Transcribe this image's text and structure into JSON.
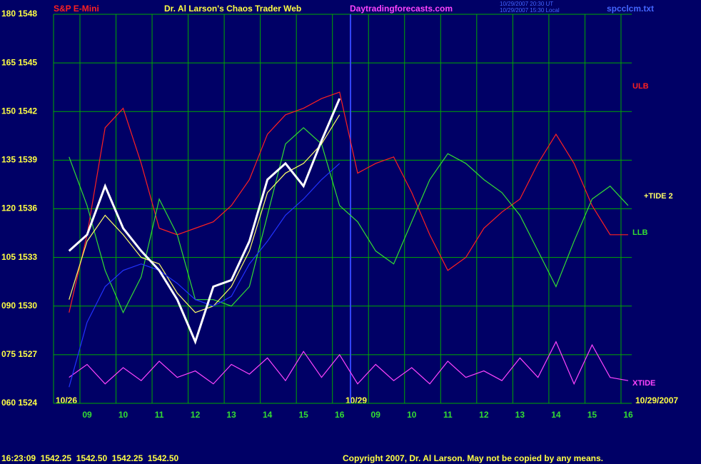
{
  "chart_data": {
    "type": "line",
    "symbol": "S&P E-Mini",
    "title": "Dr. Al Larson's Chaos Trader Web",
    "website": "Daytradingforecasts.com",
    "timestamps": [
      "10/29/2007 20:30 UT",
      "10/29/2007 15:30 Local"
    ],
    "file": "spcclcm.txt",
    "date_labels": [
      "10/26",
      "10/29",
      "10/29/2007"
    ],
    "quote": "16:23:09  1542.25  1542.50  1542.25  1542.50",
    "copyright": "Copyright 2007, Dr. Al Larson. May not be copied by any means.",
    "grid": true,
    "xlim": [
      8.07,
      24.1
    ],
    "ylim": [
      60,
      180
    ],
    "xticks": [
      {
        "value": 9,
        "label": "09"
      },
      10,
      11,
      12,
      13,
      14,
      15,
      16,
      {
        "value": 17,
        "label": "09"
      },
      {
        "value": 18,
        "label": "10"
      },
      {
        "value": 19,
        "label": "11"
      },
      {
        "value": 20,
        "label": "12"
      },
      {
        "value": 21,
        "label": "13"
      },
      {
        "value": 22,
        "label": "14"
      },
      {
        "value": 23,
        "label": "15"
      },
      {
        "value": 24,
        "label": "16"
      }
    ],
    "yticks": [
      {
        "value": 60,
        "label": "060 1524"
      },
      {
        "value": 75,
        "label": "075 1527"
      },
      {
        "value": 90,
        "label": "090 1530"
      },
      {
        "value": 105,
        "label": "105 1533"
      },
      {
        "value": 120,
        "label": "120 1536"
      },
      {
        "value": 135,
        "label": "135 1539"
      },
      {
        "value": 150,
        "label": "150 1542"
      },
      {
        "value": 165,
        "label": "165 1545"
      },
      {
        "value": 180,
        "label": "180 1548"
      }
    ],
    "x": [
      8.5,
      9,
      9.5,
      10,
      10.5,
      11,
      11.5,
      12,
      12.5,
      13,
      13.5,
      14,
      14.5,
      15,
      15.5,
      16,
      16.5,
      17,
      17.5,
      18,
      18.5,
      19,
      19.5,
      20,
      20.5,
      21,
      21.5,
      22,
      22.5,
      23,
      23.5,
      24
    ],
    "series": [
      {
        "name": "ULB",
        "color": "#ff2020",
        "values": [
          88,
          112,
          145,
          151,
          134,
          114,
          112,
          114,
          116,
          121,
          129,
          143,
          149,
          151,
          154,
          156,
          131,
          134,
          136,
          125,
          112,
          101,
          105,
          114,
          119,
          123,
          134,
          143,
          134,
          121,
          112,
          112
        ]
      },
      {
        "name": "LLB",
        "color": "#33dd33",
        "values": [
          136,
          121,
          101,
          88,
          99,
          123,
          112,
          92,
          92,
          90,
          96,
          118,
          140,
          145,
          140,
          121,
          116,
          107,
          103,
          116,
          129,
          137,
          134,
          129,
          125,
          118,
          107,
          96,
          110,
          123,
          127,
          121
        ]
      },
      {
        "name": "+TIDE 2",
        "color": "#ffff66",
        "values": [
          92,
          110,
          118,
          112,
          105,
          103,
          94,
          88,
          90,
          96,
          107,
          125,
          131,
          134,
          140,
          149,
          null,
          null,
          null,
          null,
          null,
          null,
          null,
          null,
          null,
          null,
          null,
          null,
          null,
          null,
          null,
          null
        ]
      },
      {
        "name": "XTIDE",
        "color": "#ff44ff",
        "values": [
          68,
          72,
          66,
          71,
          67,
          73,
          68,
          70,
          66,
          72,
          69,
          74,
          67,
          76,
          68,
          75,
          66,
          72,
          67,
          71,
          66,
          73,
          68,
          70,
          67,
          74,
          68,
          79,
          66,
          78,
          68,
          67
        ]
      },
      {
        "color": "#2233ff",
        "values": [
          65,
          85,
          96,
          101,
          103,
          101,
          97,
          92,
          90,
          93,
          103,
          110,
          118,
          123,
          129,
          134,
          null,
          null,
          null,
          null,
          null,
          null,
          null,
          null,
          null,
          null,
          null,
          null,
          null,
          null,
          null,
          null
        ]
      },
      {
        "color": "#ffffff",
        "values": [
          107,
          112,
          127,
          114,
          107,
          101,
          92,
          79,
          96,
          98,
          110,
          129,
          134,
          127,
          141,
          154,
          null,
          null,
          null,
          null,
          null,
          null,
          null,
          null,
          null,
          null,
          null,
          null,
          null,
          null,
          null,
          null
        ]
      }
    ]
  }
}
